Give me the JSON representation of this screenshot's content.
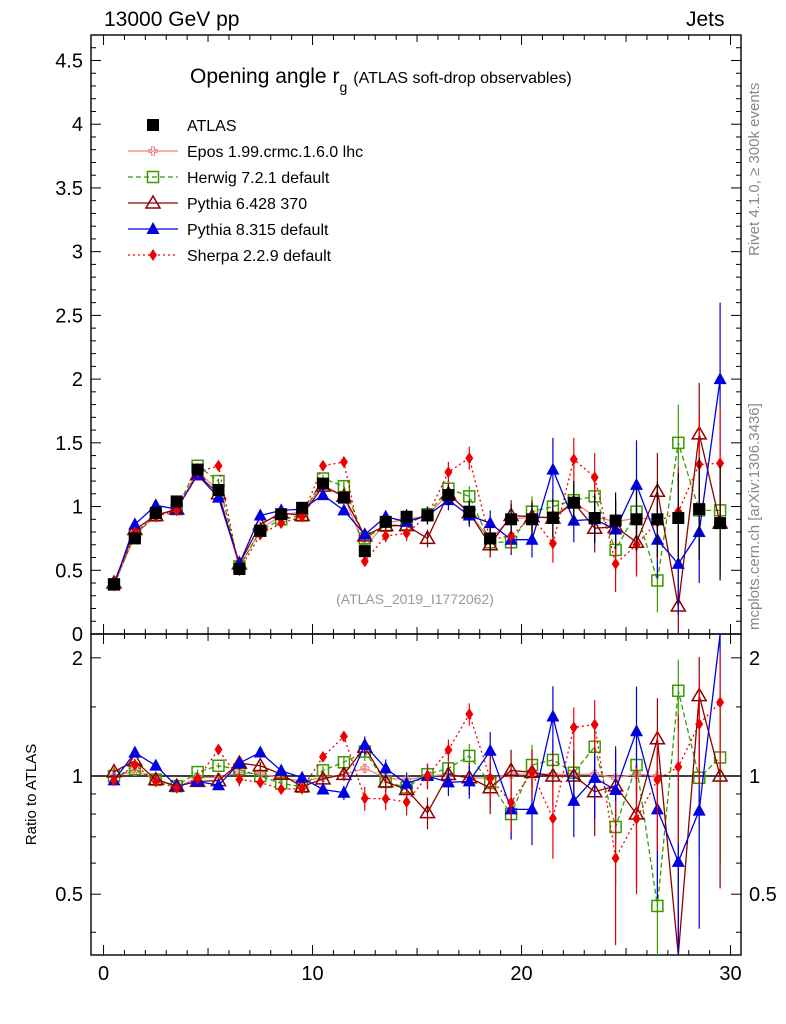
{
  "header": {
    "left": "13000 GeV pp",
    "right": "Jets",
    "side_top": "Rivet 4.1.0, ≥ 300k events",
    "side_bottom": "mcplots.cern.ch [arXiv:1306.3436]"
  },
  "chart_data": {
    "type": "scatter",
    "title_main": "Opening angle r",
    "title_sub": "g",
    "title_extra": "(ATLAS soft-drop observables)",
    "analysis_tag": "(ATLAS_2019_I1772062)",
    "ratio_ylabel": "Ratio to ATLAS",
    "xlim": [
      -0.6,
      30.5
    ],
    "ylim_main": [
      0,
      4.7
    ],
    "ylim_ratio": [
      0.35,
      2.3
    ],
    "x_ticks": [
      0,
      10,
      20,
      30
    ],
    "y_ticks_main": [
      0,
      0.5,
      1,
      1.5,
      2,
      2.5,
      3,
      3.5,
      4,
      4.5
    ],
    "y_tick_labels_main": [
      "0",
      "0.5",
      "1",
      "1.5",
      "2",
      "2.5",
      "3",
      "3.5",
      "4",
      "4.5"
    ],
    "y_ticks_ratio": [
      0.5,
      1,
      2
    ],
    "y_tick_labels_ratio": [
      "0.5",
      "1",
      "2"
    ],
    "x": [
      0.5,
      1.5,
      2.5,
      3.5,
      4.5,
      5.5,
      6.5,
      7.5,
      8.5,
      9.5,
      10.5,
      11.5,
      12.5,
      13.5,
      14.5,
      15.5,
      16.5,
      17.5,
      18.5,
      19.5,
      20.5,
      21.5,
      22.5,
      23.5,
      24.5,
      25.5,
      26.5,
      27.5,
      28.5,
      29.5
    ],
    "data": {
      "name": "ATLAS",
      "values": [
        0.39,
        0.75,
        0.95,
        1.04,
        1.29,
        1.13,
        0.51,
        0.81,
        0.94,
        0.99,
        1.18,
        1.07,
        0.65,
        0.88,
        0.92,
        0.93,
        1.09,
        0.96,
        0.75,
        0.9,
        0.9,
        0.91,
        1.03,
        0.91,
        0.89,
        0.9,
        0.9,
        0.91,
        0.98,
        0.87
      ]
    },
    "series": [
      {
        "name": "Epos 1.99.crmc.1.6.0 lhc",
        "color": "#f08080",
        "marker": "open-cross",
        "dash": "",
        "values": [
          0.39,
          0.77,
          0.94,
          0.97,
          1.28,
          1.12,
          0.52,
          0.82,
          0.93,
          0.96,
          1.17,
          1.08,
          0.68,
          0.87,
          0.9,
          0.93,
          1.1,
          0.95,
          0.74,
          0.91,
          0.91,
          0.92,
          1.04,
          0.92,
          0.88,
          0.91,
          0.9,
          null,
          null,
          null
        ],
        "errors": [
          0.01,
          0.01,
          0.01,
          0.01,
          0.01,
          0.01,
          0.01,
          0.01,
          0.01,
          0.01,
          0.01,
          0.01,
          0.02,
          0.02,
          0.02,
          0.02,
          0.03,
          0.03,
          0.04,
          0.05,
          0.06,
          0.07,
          0.08,
          0.09,
          0.1,
          0.12,
          0.14,
          0,
          0,
          0
        ]
      },
      {
        "name": "Herwig 7.2.1 default",
        "color": "#3a9a00",
        "marker": "open-square",
        "dash": "5,3",
        "values": [
          0.39,
          0.78,
          0.93,
          0.98,
          1.32,
          1.2,
          0.53,
          0.81,
          0.9,
          0.93,
          1.22,
          1.16,
          0.75,
          0.85,
          0.86,
          0.94,
          1.14,
          1.08,
          0.72,
          0.72,
          0.96,
          1.0,
          1.05,
          1.08,
          0.66,
          0.96,
          0.42,
          1.5,
          0.97,
          0.97
        ],
        "errors": [
          0.01,
          0.01,
          0.01,
          0.01,
          0.02,
          0.02,
          0.01,
          0.02,
          0.02,
          0.02,
          0.03,
          0.04,
          0.04,
          0.05,
          0.05,
          0.06,
          0.07,
          0.08,
          0.09,
          0.1,
          0.12,
          0.13,
          0.15,
          0.17,
          0.19,
          0.22,
          0.25,
          0.3,
          0.36,
          0.45
        ]
      },
      {
        "name": "Pythia 6.428 370",
        "color": "#8b0000",
        "marker": "open-triangle",
        "dash": "",
        "values": [
          0.4,
          0.82,
          0.93,
          0.98,
          1.25,
          1.1,
          0.55,
          0.86,
          0.95,
          0.93,
          1.16,
          1.08,
          0.77,
          0.85,
          0.85,
          0.75,
          1.1,
          0.95,
          0.7,
          0.93,
          0.92,
          0.91,
          1.03,
          0.83,
          0.84,
          0.72,
          1.12,
          0.22,
          1.57,
          0.87
        ],
        "errors": [
          0.01,
          0.01,
          0.01,
          0.01,
          0.02,
          0.02,
          0.02,
          0.02,
          0.02,
          0.03,
          0.03,
          0.04,
          0.04,
          0.05,
          0.06,
          0.07,
          0.08,
          0.09,
          0.1,
          0.12,
          0.13,
          0.15,
          0.17,
          0.19,
          0.22,
          0.25,
          0.3,
          0.4,
          0.4,
          0.42
        ]
      },
      {
        "name": "Pythia 8.315 default",
        "color": "#0000e0",
        "marker": "triangle",
        "dash": "",
        "values": [
          0.38,
          0.86,
          1.01,
          0.98,
          1.25,
          1.07,
          0.55,
          0.93,
          0.97,
          0.98,
          1.09,
          0.97,
          0.78,
          0.92,
          0.88,
          0.93,
          1.05,
          0.93,
          0.87,
          0.74,
          0.74,
          1.29,
          0.89,
          0.9,
          0.82,
          1.17,
          0.74,
          0.55,
          0.8,
          2.0
        ],
        "errors": [
          0.01,
          0.01,
          0.01,
          0.01,
          0.02,
          0.02,
          0.02,
          0.02,
          0.02,
          0.03,
          0.03,
          0.04,
          0.04,
          0.05,
          0.06,
          0.07,
          0.08,
          0.09,
          0.1,
          0.12,
          0.14,
          0.25,
          0.17,
          0.19,
          0.22,
          0.35,
          0.3,
          0.4,
          0.4,
          0.6
        ]
      },
      {
        "name": "Sherpa 2.2.9 default",
        "color": "#ee0000",
        "marker": "diamond",
        "dash": "2,3",
        "values": [
          0.38,
          0.8,
          0.92,
          0.97,
          1.27,
          1.32,
          0.5,
          0.78,
          0.87,
          0.92,
          1.32,
          1.35,
          0.57,
          0.77,
          0.79,
          0.93,
          1.27,
          1.38,
          0.74,
          0.77,
          0.92,
          0.71,
          1.37,
          1.23,
          0.55,
          0.7,
          0.88,
          0.96,
          1.33,
          1.34
        ],
        "errors": [
          0.01,
          0.01,
          0.01,
          0.01,
          0.02,
          0.02,
          0.02,
          0.02,
          0.02,
          0.03,
          0.03,
          0.04,
          0.04,
          0.05,
          0.06,
          0.07,
          0.08,
          0.09,
          0.1,
          0.12,
          0.13,
          0.15,
          0.17,
          0.19,
          0.22,
          0.25,
          0.3,
          0.35,
          0.4,
          0.45
        ]
      }
    ],
    "data_errors": [
      0.01,
      0.02,
      0.02,
      0.02,
      0.03,
      0.03,
      0.02,
      0.02,
      0.02,
      0.03,
      0.03,
      0.04,
      0.04,
      0.05,
      0.06,
      0.07,
      0.08,
      0.09,
      0.1,
      0.12,
      0.13,
      0.15,
      0.17,
      0.19,
      0.22,
      0.25,
      0.3,
      0.35,
      0.4,
      0.45
    ]
  }
}
